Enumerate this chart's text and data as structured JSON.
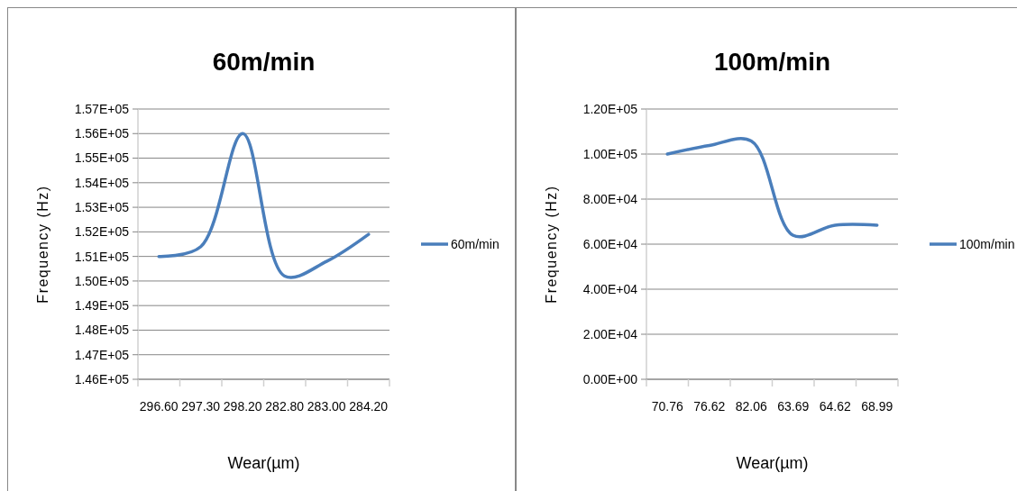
{
  "chart_data": [
    {
      "type": "line",
      "title": "60m/min",
      "xlabel": "Wear(µm)",
      "ylabel": "Frequency (Hz)",
      "categories": [
        "296.60",
        "297.30",
        "298.20",
        "282.80",
        "283.00",
        "284.20"
      ],
      "series": [
        {
          "name": "60m/min",
          "color": "#4a7ebb",
          "values": [
            151000,
            151400,
            156000,
            150200,
            150800,
            151900
          ]
        }
      ],
      "ylim": [
        146000,
        157000
      ],
      "yticks": [
        {
          "value": 146000,
          "label": "1.46E+05"
        },
        {
          "value": 147000,
          "label": "1.47E+05"
        },
        {
          "value": 148000,
          "label": "1.48E+05"
        },
        {
          "value": 149000,
          "label": "1.49E+05"
        },
        {
          "value": 150000,
          "label": "1.50E+05"
        },
        {
          "value": 151000,
          "label": "1.51E+05"
        },
        {
          "value": 152000,
          "label": "1.52E+05"
        },
        {
          "value": 153000,
          "label": "1.53E+05"
        },
        {
          "value": 154000,
          "label": "1.54E+05"
        },
        {
          "value": 155000,
          "label": "1.55E+05"
        },
        {
          "value": 156000,
          "label": "1.56E+05"
        },
        {
          "value": 157000,
          "label": "1.57E+05"
        }
      ],
      "grid": "y",
      "legend": "right",
      "marker": "none",
      "line_style": "solid"
    },
    {
      "type": "line",
      "title": "100m/min",
      "xlabel": "Wear(µm)",
      "ylabel": "Frequency (Hz)",
      "categories": [
        "70.76",
        "76.62",
        "82.06",
        "63.69",
        "64.62",
        "68.99"
      ],
      "series": [
        {
          "name": "100m/min",
          "color": "#4a7ebb",
          "values": [
            100000,
            103800,
            105800,
            63900,
            68400,
            68400
          ]
        }
      ],
      "ylim": [
        0,
        120000
      ],
      "yticks": [
        {
          "value": 0,
          "label": "0.00E+00"
        },
        {
          "value": 20000,
          "label": "2.00E+04"
        },
        {
          "value": 40000,
          "label": "4.00E+04"
        },
        {
          "value": 60000,
          "label": "6.00E+04"
        },
        {
          "value": 80000,
          "label": "8.00E+04"
        },
        {
          "value": 100000,
          "label": "1.00E+05"
        },
        {
          "value": 120000,
          "label": "1.20E+05"
        }
      ],
      "grid": "y",
      "legend": "right",
      "marker": "none",
      "line_style": "solid"
    }
  ]
}
